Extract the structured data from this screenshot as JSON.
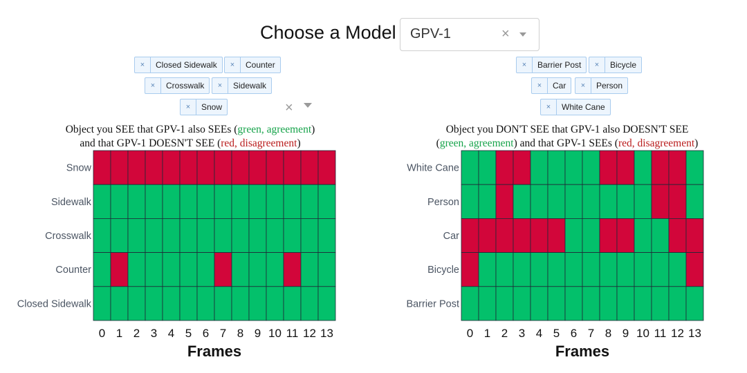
{
  "model_chooser": {
    "label": "Choose a Model",
    "selected": "GPV-1",
    "clear_icon": "close-icon",
    "dropdown_icon": "chevron-down-icon"
  },
  "left_panel": {
    "tags": [
      "Closed Sidewalk",
      "Counter",
      "Crosswalk",
      "Sidewalk",
      "Snow"
    ],
    "description": {
      "line1_a": "Object you SEE that GPV-1 also SEEs (",
      "line1_green": "green, agreement",
      "line1_b": ")",
      "line2_a": "and that  GPV-1 DOESN'T SEE (",
      "line2_red": "red, disagreement",
      "line2_b": ")"
    }
  },
  "right_panel": {
    "tags": [
      "Barrier Post",
      "Bicycle",
      "Car",
      "Person",
      "White Cane"
    ],
    "description": {
      "line1": "Object you DON'T SEE that GPV-1 also DOESN'T SEE",
      "line2_a": "(",
      "line2_green": "green, agreement",
      "line2_b": ") and that  GPV-1  SEEs (",
      "line2_red": "red, disagreement",
      "line2_c": ")"
    }
  },
  "colors": {
    "agree": "#03c06b",
    "disagree": "#d2063a",
    "grid": "#1f2937"
  },
  "chart_data": [
    {
      "type": "heatmap",
      "xlabel": "Frames",
      "x": [
        "0",
        "1",
        "2",
        "3",
        "4",
        "5",
        "6",
        "7",
        "8",
        "9",
        "10",
        "11",
        "12",
        "13"
      ],
      "y": [
        "Snow",
        "Sidewalk",
        "Crosswalk",
        "Counter",
        "Closed Sidewalk"
      ],
      "legend": {
        "0": "agreement (green)",
        "1": "disagreement (red)"
      },
      "z": [
        [
          1,
          1,
          1,
          1,
          1,
          1,
          1,
          1,
          1,
          1,
          1,
          1,
          1,
          1
        ],
        [
          0,
          0,
          0,
          0,
          0,
          0,
          0,
          0,
          0,
          0,
          0,
          0,
          0,
          0
        ],
        [
          0,
          0,
          0,
          0,
          0,
          0,
          0,
          0,
          0,
          0,
          0,
          0,
          0,
          0
        ],
        [
          0,
          1,
          0,
          0,
          0,
          0,
          0,
          1,
          0,
          0,
          0,
          1,
          0,
          0
        ],
        [
          0,
          0,
          0,
          0,
          0,
          0,
          0,
          0,
          0,
          0,
          0,
          0,
          0,
          0
        ]
      ]
    },
    {
      "type": "heatmap",
      "xlabel": "Frames",
      "x": [
        "0",
        "1",
        "2",
        "3",
        "4",
        "5",
        "6",
        "7",
        "8",
        "9",
        "10",
        "11",
        "12",
        "13"
      ],
      "y": [
        "White Cane",
        "Person",
        "Car",
        "Bicycle",
        "Barrier Post"
      ],
      "legend": {
        "0": "agreement (green)",
        "1": "disagreement (red)"
      },
      "z": [
        [
          0,
          0,
          1,
          1,
          0,
          0,
          0,
          0,
          1,
          1,
          0,
          1,
          1,
          0
        ],
        [
          0,
          0,
          1,
          0,
          0,
          0,
          0,
          0,
          0,
          0,
          0,
          1,
          1,
          0
        ],
        [
          1,
          1,
          1,
          1,
          1,
          1,
          0,
          0,
          1,
          1,
          0,
          0,
          1,
          1
        ],
        [
          1,
          0,
          0,
          0,
          0,
          0,
          0,
          0,
          0,
          0,
          0,
          0,
          0,
          1
        ],
        [
          0,
          0,
          0,
          0,
          0,
          0,
          0,
          0,
          0,
          0,
          0,
          0,
          0,
          0
        ]
      ]
    }
  ]
}
